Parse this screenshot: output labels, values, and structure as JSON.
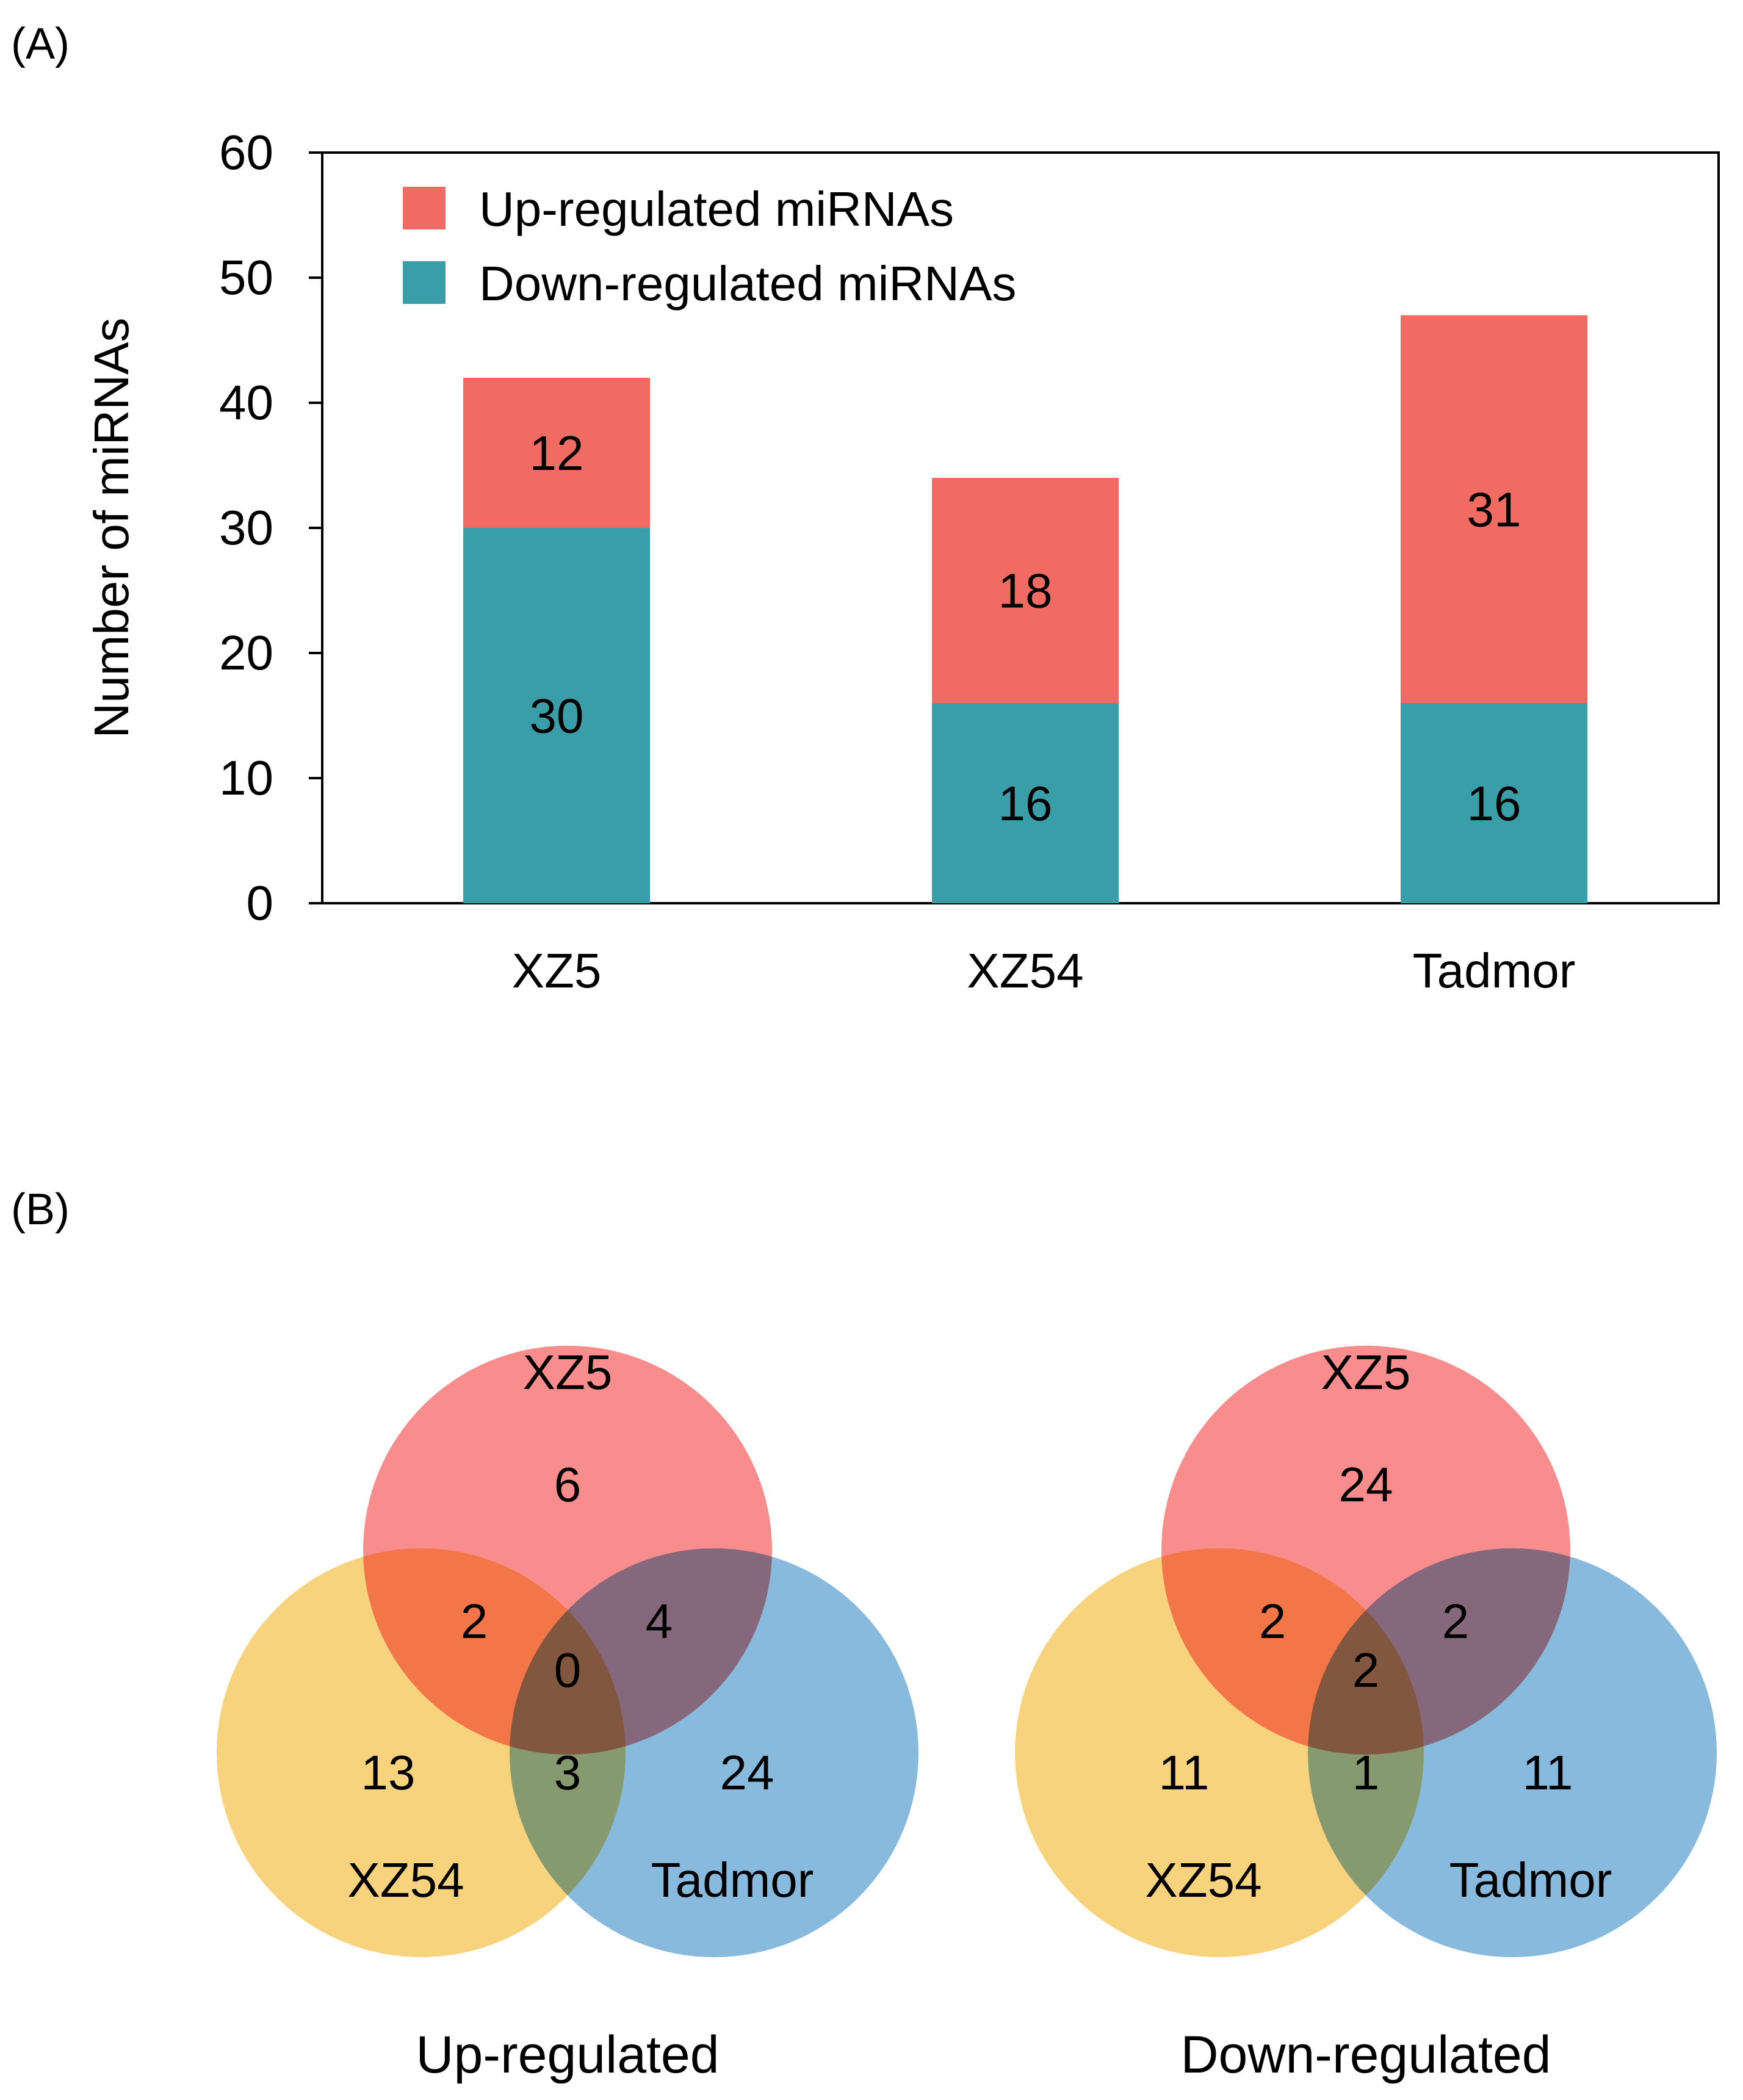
{
  "panel_a_label": "(A)",
  "panel_b_label": "(B)",
  "colors": {
    "up": "#f26b63",
    "down": "#3a9ea8",
    "venn_top": "#f77070",
    "venn_left": "#f5c85e",
    "venn_right": "#6aa9d6",
    "up_caption": "#e8181a",
    "down_caption": "#1e8a3c"
  },
  "chart_data": {
    "type": "bar",
    "stacked": true,
    "title": "",
    "xlabel": "",
    "ylabel": "Number of miRNAs",
    "ylim": [
      0,
      60
    ],
    "yticks": [
      0,
      10,
      20,
      30,
      40,
      50,
      60
    ],
    "categories": [
      "XZ5",
      "XZ54",
      "Tadmor"
    ],
    "series": [
      {
        "name": "Down-regulated miRNAs",
        "values": [
          30,
          16,
          16
        ],
        "color": "#3a9ea8"
      },
      {
        "name": "Up-regulated miRNAs",
        "values": [
          12,
          18,
          31
        ],
        "color": "#f26b63"
      }
    ],
    "legend": [
      {
        "label": "Up-regulated miRNAs",
        "color": "#f26b63"
      },
      {
        "label": "Down-regulated miRNAs",
        "color": "#3a9ea8"
      }
    ],
    "legend_position": "top-left"
  },
  "venn": [
    {
      "caption": "Up-regulated",
      "sets": {
        "top": "XZ5",
        "left": "XZ54",
        "right": "Tadmor"
      },
      "regions": {
        "top_only": "6",
        "top_left": "2",
        "top_right": "4",
        "center": "0",
        "left_only": "13",
        "left_right": "3",
        "right_only": "24"
      }
    },
    {
      "caption": "Down-regulated",
      "sets": {
        "top": "XZ5",
        "left": "XZ54",
        "right": "Tadmor"
      },
      "regions": {
        "top_only": "24",
        "top_left": "2",
        "top_right": "2",
        "center": "2",
        "left_only": "11",
        "left_right": "1",
        "right_only": "11"
      }
    }
  ]
}
